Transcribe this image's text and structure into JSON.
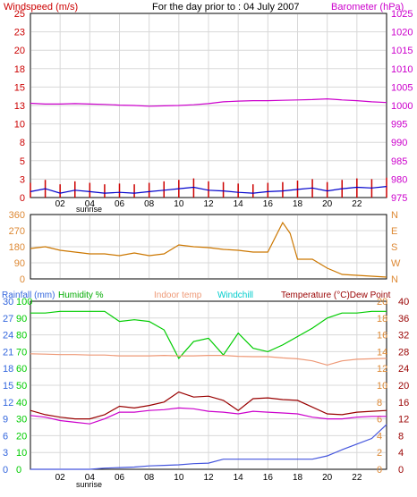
{
  "header": {
    "left_label": "Windspeed (m/s)",
    "title": "For the day prior to : 04 July 2007",
    "right_label": "Barometer (hPa)"
  },
  "colors": {
    "red": "#cc0000",
    "magenta": "#cc00cc",
    "blue": "#0000cc",
    "orange_brown": "#cc7700",
    "green": "#00cc00",
    "salmon": "#ee9977",
    "cyan": "#00cccc",
    "darkred": "#990000",
    "plotblue": "#4455dd",
    "grid": "#d8d8d8",
    "orange_axis": "#dd8833",
    "blue_axis": "#3366dd"
  },
  "x_ticks": [
    "02",
    "04",
    "06",
    "08",
    "10",
    "12",
    "14",
    "16",
    "18",
    "20",
    "22"
  ],
  "sunrise_label": "sunrise",
  "chart_data": [
    {
      "type": "line",
      "title": "For the day prior to : 04 July 2007",
      "left_axis": {
        "label": "Windspeed (m/s)",
        "ticks": [
          0,
          3,
          5,
          8,
          10,
          13,
          15,
          18,
          20,
          23,
          25
        ],
        "range": [
          0,
          25
        ]
      },
      "right_axis": {
        "label": "Barometer (hPa)",
        "ticks": [
          975,
          980,
          985,
          990,
          995,
          1000,
          1005,
          1010,
          1015,
          1020,
          1025
        ],
        "range": [
          975,
          1025
        ]
      },
      "x_range": [
        0,
        24
      ],
      "series": [
        {
          "name": "Windspeed (m/s)",
          "axis": "left",
          "x": [
            0,
            1,
            2,
            3,
            4,
            5,
            6,
            7,
            8,
            9,
            10,
            11,
            12,
            13,
            14,
            15,
            16,
            17,
            18,
            19,
            20,
            21,
            22,
            23,
            24
          ],
          "values": [
            0.8,
            1.2,
            0.6,
            1.0,
            0.8,
            0.6,
            0.7,
            0.6,
            0.8,
            1.0,
            1.2,
            1.4,
            1.0,
            0.9,
            0.7,
            0.6,
            0.8,
            0.9,
            1.1,
            1.3,
            0.9,
            1.2,
            1.4,
            1.3,
            1.5
          ]
        },
        {
          "name": "Barometer (hPa)",
          "axis": "right",
          "x": [
            0,
            1,
            2,
            3,
            4,
            5,
            6,
            7,
            8,
            9,
            10,
            11,
            12,
            13,
            14,
            15,
            16,
            17,
            18,
            19,
            20,
            21,
            22,
            23,
            24
          ],
          "values": [
            1000.6,
            1000.4,
            1000.4,
            1000.5,
            1000.4,
            1000.3,
            1000.1,
            1000.0,
            999.8,
            999.9,
            1000.0,
            1000.2,
            1000.5,
            1001.0,
            1001.2,
            1001.3,
            1001.3,
            1001.4,
            1001.5,
            1001.6,
            1001.8,
            1001.5,
            1001.3,
            1001.0,
            1000.8
          ]
        }
      ]
    },
    {
      "type": "line",
      "left_axis": {
        "ticks": [
          0,
          90,
          180,
          270,
          360
        ],
        "range": [
          0,
          360
        ]
      },
      "right_axis": {
        "ticks": [
          "N",
          "W",
          "S",
          "E",
          "N"
        ]
      },
      "x_range": [
        0,
        24
      ],
      "series": [
        {
          "name": "Wind direction",
          "x": [
            0,
            1,
            2,
            3,
            4,
            5,
            6,
            7,
            8,
            9,
            10,
            11,
            12,
            13,
            14,
            15,
            16,
            17,
            17.5,
            18,
            19,
            20,
            21,
            22,
            23,
            24
          ],
          "values": [
            170,
            180,
            160,
            150,
            140,
            140,
            130,
            145,
            130,
            140,
            190,
            180,
            175,
            165,
            160,
            150,
            150,
            315,
            255,
            110,
            110,
            60,
            25,
            20,
            15,
            10
          ]
        }
      ]
    },
    {
      "type": "line",
      "axes": [
        {
          "label": "Rainfall (mm)",
          "ticks": [
            0,
            3,
            6,
            9,
            12,
            15,
            18,
            21,
            24,
            27,
            30
          ],
          "range": [
            0,
            30
          ]
        },
        {
          "label": "Humidity %",
          "ticks": [
            0,
            10,
            20,
            30,
            40,
            50,
            60,
            70,
            80,
            90,
            100
          ],
          "range": [
            0,
            100
          ]
        },
        {
          "label": "Temperature (°C)",
          "ticks": [
            0,
            2,
            4,
            6,
            8,
            10,
            12,
            14,
            16,
            18,
            20
          ],
          "range": [
            0,
            20
          ]
        },
        {
          "label": "Dew Point",
          "ticks": [
            0,
            4,
            8,
            12,
            16,
            20,
            24,
            28,
            32,
            36,
            40
          ],
          "range": [
            0,
            40
          ]
        }
      ],
      "legend": [
        "Rainfall (mm)",
        "Humidity %",
        "Indoor temp",
        "Windchill",
        "Temperature (°C)Dew Point"
      ],
      "x_range": [
        0,
        24
      ],
      "series": [
        {
          "name": "Humidity %",
          "axis": "Humidity %",
          "x": [
            0,
            1,
            2,
            3,
            4,
            5,
            6,
            7,
            8,
            9,
            10,
            11,
            12,
            13,
            14,
            15,
            16,
            17,
            18,
            19,
            20,
            21,
            22,
            23,
            24
          ],
          "values": [
            93,
            93,
            94,
            94,
            94,
            94,
            88,
            89,
            88,
            83,
            66,
            76,
            78,
            68,
            81,
            72,
            70,
            74,
            79,
            84,
            90,
            93,
            93,
            94,
            94
          ]
        },
        {
          "name": "Indoor temp",
          "axis": "Dew Point",
          "x": [
            0,
            1,
            2,
            3,
            4,
            5,
            6,
            7,
            8,
            9,
            10,
            11,
            12,
            13,
            14,
            15,
            16,
            17,
            18,
            19,
            20,
            21,
            22,
            23,
            24
          ],
          "values": [
            27.5,
            27.4,
            27.3,
            27.3,
            27.2,
            27.2,
            27.0,
            27.0,
            27.0,
            27.1,
            27.0,
            27.0,
            27.1,
            27.1,
            26.9,
            26.8,
            26.8,
            26.5,
            26.3,
            25.8,
            24.8,
            25.8,
            26.2,
            26.3,
            26.4
          ]
        },
        {
          "name": "Temperature (°C)",
          "axis": "Temperature (°C)",
          "x": [
            0,
            1,
            2,
            3,
            4,
            5,
            6,
            7,
            8,
            9,
            10,
            11,
            12,
            13,
            14,
            15,
            16,
            17,
            18,
            19,
            20,
            21,
            22,
            23,
            24
          ],
          "values": [
            7.0,
            6.5,
            6.2,
            6.0,
            6.0,
            6.5,
            7.5,
            7.3,
            7.6,
            8.0,
            9.2,
            8.6,
            8.7,
            8.2,
            7.0,
            8.4,
            8.5,
            8.3,
            8.2,
            7.4,
            6.6,
            6.5,
            6.8,
            6.9,
            7.0
          ]
        },
        {
          "name": "Windchill",
          "axis": "Temperature (°C)",
          "x": [
            0,
            1,
            2,
            3,
            4,
            5,
            6,
            7,
            8,
            9,
            10,
            11,
            12,
            13,
            14,
            15,
            16,
            17,
            18,
            19,
            20,
            21,
            22,
            23,
            24
          ],
          "values": [
            6.4,
            6.2,
            5.8,
            5.6,
            5.4,
            6.0,
            6.8,
            6.8,
            7.0,
            7.1,
            7.3,
            7.2,
            6.9,
            6.8,
            6.6,
            6.9,
            6.8,
            6.7,
            6.6,
            6.2,
            6.0,
            6.0,
            6.2,
            6.3,
            6.3
          ]
        },
        {
          "name": "Rainfall (mm)",
          "axis": "Rainfall (mm)",
          "x": [
            0,
            1,
            2,
            3,
            4,
            5,
            6,
            7,
            8,
            9,
            10,
            11,
            12,
            13,
            14,
            15,
            16,
            17,
            18,
            19,
            20,
            21,
            22,
            23,
            24
          ],
          "values": [
            0.0,
            0.0,
            0.0,
            0.0,
            0.0,
            0.2,
            0.3,
            0.4,
            0.6,
            0.7,
            0.8,
            1.0,
            1.1,
            1.8,
            1.8,
            1.8,
            1.8,
            1.8,
            1.8,
            1.8,
            2.4,
            3.5,
            4.5,
            5.5,
            8.0
          ]
        }
      ]
    }
  ]
}
